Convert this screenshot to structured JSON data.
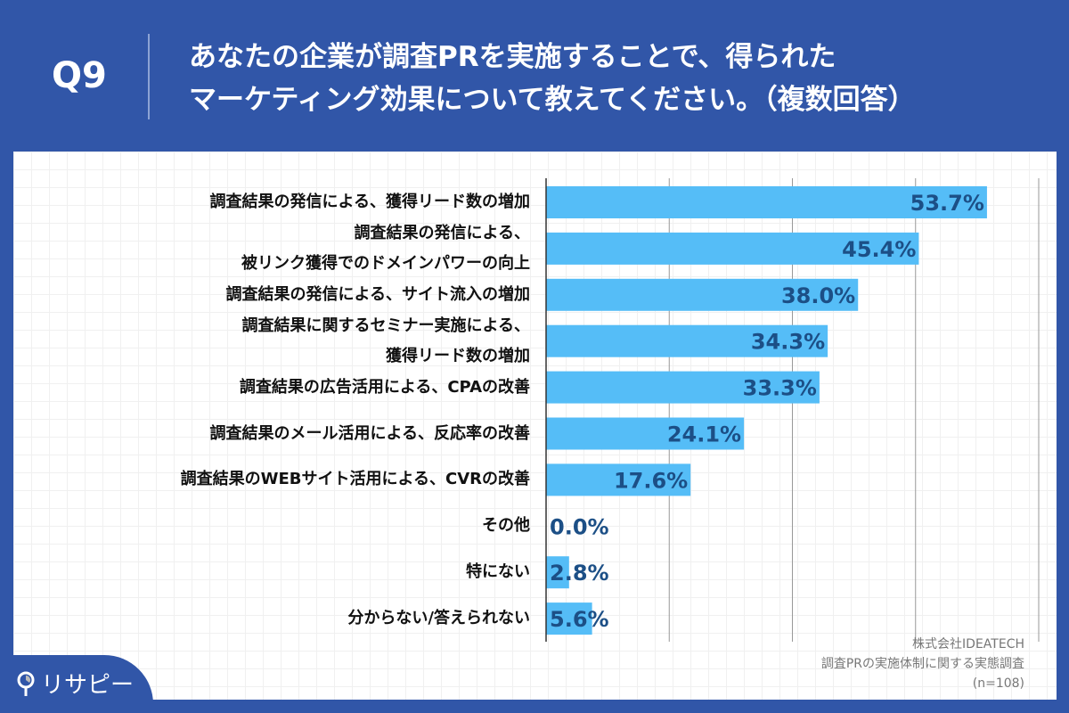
{
  "header": {
    "q": "Q9",
    "title_lines": [
      "あなたの企業が調査PRを実施することで、得られた",
      "マーケティング効果について教えてください。（複数回答）"
    ]
  },
  "chart_data": {
    "type": "bar",
    "orientation": "horizontal",
    "xlim": [
      0,
      60
    ],
    "grid": true,
    "bar_color": "#55bdf7",
    "label_color": "#1c4f86",
    "categories": [
      [
        "調査結果の発信による、獲得リード数の増加"
      ],
      [
        "調査結果の発信による、",
        "被リンク獲得でのドメインパワーの向上"
      ],
      [
        "調査結果の発信による、サイト流入の増加"
      ],
      [
        "調査結果に関するセミナー実施による、",
        "獲得リード数の増加"
      ],
      [
        "調査結果の広告活用による、CPAの改善"
      ],
      [
        "調査結果のメール活用による、反応率の改善"
      ],
      [
        "調査結果のWEBサイト活用による、CVRの改善"
      ],
      [
        "その他"
      ],
      [
        "特にない"
      ],
      [
        "分からない/答えられない"
      ]
    ],
    "values": [
      53.7,
      45.4,
      38.0,
      34.3,
      33.3,
      24.1,
      17.6,
      0.0,
      2.8,
      5.6
    ],
    "data_labels": [
      "53.7%",
      "45.4%",
      "38.0%",
      "34.3%",
      "33.3%",
      "24.1%",
      "17.6%",
      "0.0%",
      "2.8%",
      "5.6%"
    ]
  },
  "source": {
    "company": "株式会社IDEATECH",
    "survey": "調査PRの実施体制に関する実態調査",
    "n": "(n=108)"
  },
  "logo": {
    "text": "リサピー"
  }
}
